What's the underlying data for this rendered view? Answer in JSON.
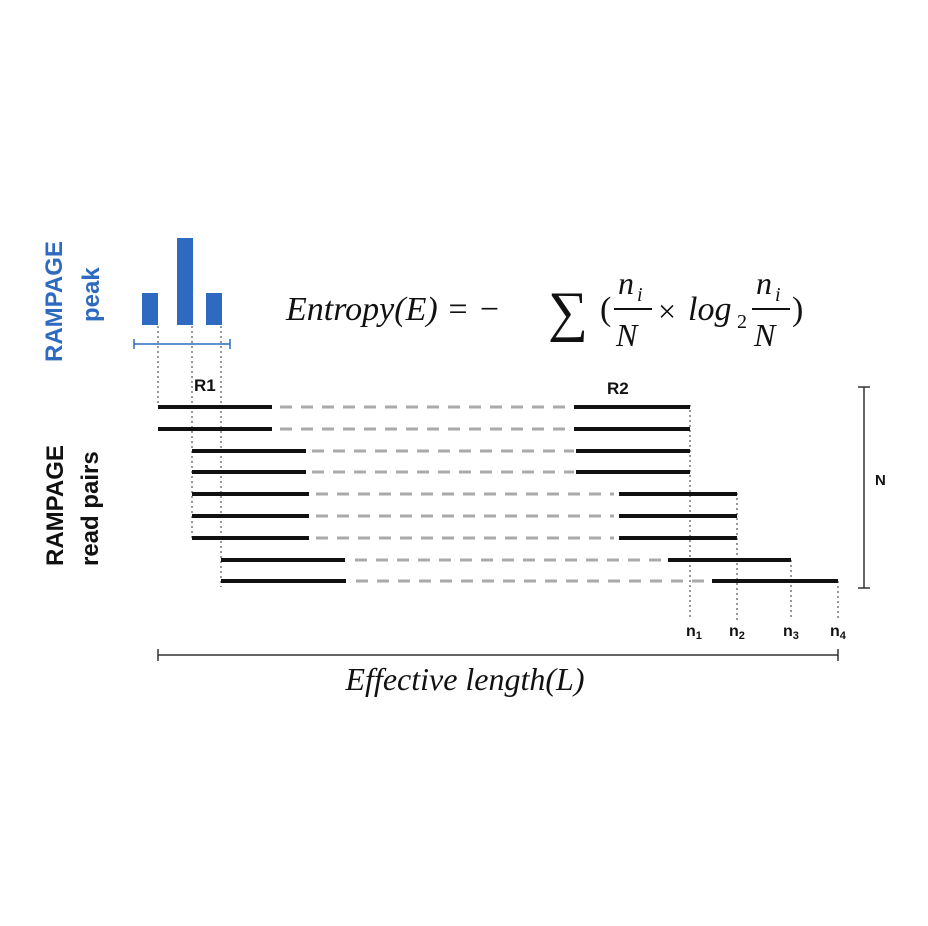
{
  "peak_label": {
    "line1": "RAMPAGE",
    "line2": "peak"
  },
  "reads_label": {
    "line1": "RAMPAGE",
    "line2": "read pairs"
  },
  "formula": {
    "lhs": "Entropy(E) = −",
    "sum": "∑",
    "open": "(",
    "num1": "n",
    "num1_sub": "i",
    "den1": "N",
    "times": "×",
    "log": "log",
    "log_sub": "2",
    "num2": "n",
    "num2_sub": "i",
    "den2": "N",
    "close": ")"
  },
  "read1_label": "R1",
  "read2_label": "R2",
  "total_label": "N",
  "group_labels": [
    {
      "base": "n",
      "sub": "1"
    },
    {
      "base": "n",
      "sub": "2"
    },
    {
      "base": "n",
      "sub": "3"
    },
    {
      "base": "n",
      "sub": "4"
    }
  ],
  "length_label": "Effective length(L)",
  "peak_bars": [
    1,
    2,
    1
  ],
  "colors": {
    "peak": "#2f6ac1",
    "read": "#111111",
    "gap": "#aaaaaa"
  }
}
